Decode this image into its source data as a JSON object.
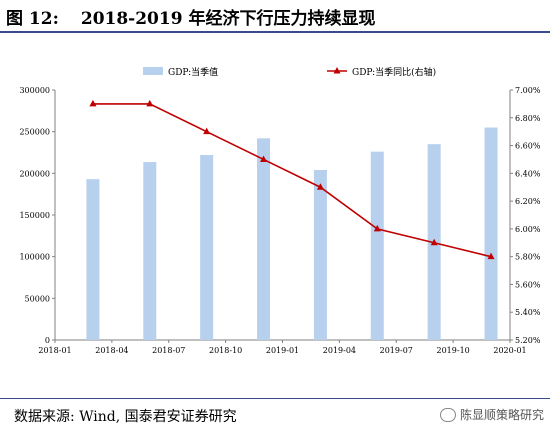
{
  "header": {
    "figure_label": "图 12:",
    "figure_title": "2018-2019 年经济下行压力持续显现"
  },
  "footer": {
    "source": "数据来源: Wind, 国泰君安证券研究",
    "watermark": "陈显顺策略研究",
    "watermark_icon": "wechat-icon"
  },
  "chart_data": {
    "type": "bar+line",
    "categories": [
      "2018-01",
      "2018-04",
      "2018-07",
      "2018-10",
      "2019-01",
      "2019-04",
      "2019-07",
      "2019-10",
      "2020-01"
    ],
    "series": [
      {
        "name": "GDP:当季值",
        "type": "bar",
        "axis": "left",
        "color": "#b7d0ee",
        "x": [
          "2018-03",
          "2018-06",
          "2018-09",
          "2018-12",
          "2019-03",
          "2019-06",
          "2019-09",
          "2019-12"
        ],
        "values": [
          193000,
          213500,
          222000,
          242000,
          204000,
          226000,
          235000,
          255000
        ]
      },
      {
        "name": "GDP:当季同比(右轴)",
        "type": "line",
        "axis": "right",
        "color": "#c00000",
        "x": [
          "2018-03",
          "2018-06",
          "2018-09",
          "2018-12",
          "2019-03",
          "2019-06",
          "2019-09",
          "2019-12"
        ],
        "values": [
          6.9,
          6.9,
          6.7,
          6.5,
          6.3,
          6.0,
          5.9,
          5.8
        ]
      }
    ],
    "left_axis": {
      "min": 0,
      "max": 300000,
      "step": 50000,
      "ticks": [
        "0",
        "50000",
        "100000",
        "150000",
        "200000",
        "250000",
        "300000"
      ]
    },
    "right_axis": {
      "min": 5.2,
      "max": 7.0,
      "step": 0.2,
      "ticks": [
        "5.20%",
        "5.40%",
        "5.60%",
        "5.80%",
        "6.00%",
        "6.20%",
        "6.40%",
        "6.60%",
        "6.80%",
        "7.00%"
      ]
    },
    "legend": [
      {
        "label": "GDP:当季值",
        "kind": "bar",
        "color": "#b7d0ee"
      },
      {
        "label": "GDP:当季同比(右轴)",
        "kind": "line",
        "color": "#c00000"
      }
    ],
    "legend_position": "top",
    "grid": false
  }
}
